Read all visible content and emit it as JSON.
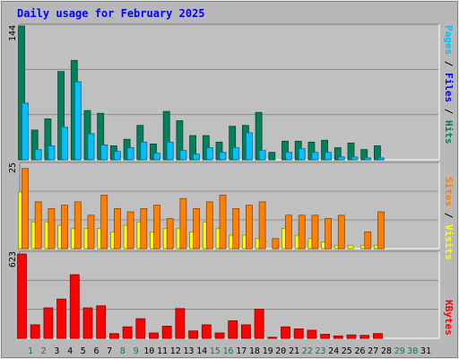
{
  "chart_data": [
    {
      "panel": "hits-files-pages",
      "type": "bar",
      "title": "Daily usage for February 2025",
      "categories": [
        "1",
        "2",
        "3",
        "4",
        "5",
        "6",
        "7",
        "8",
        "9",
        "10",
        "11",
        "12",
        "13",
        "14",
        "15",
        "16",
        "17",
        "18",
        "19",
        "20",
        "21",
        "22",
        "23",
        "24",
        "25",
        "26",
        "27",
        "28",
        "29",
        "30",
        "31"
      ],
      "ymax_label": "144",
      "ylim": [
        0,
        144
      ],
      "right_label": {
        "pages": "Pages",
        "files": "Files",
        "hits": "Hits",
        "sep": " / "
      },
      "series": [
        {
          "name": "Hits",
          "values": [
            144,
            32,
            44,
            95,
            107,
            53,
            50,
            15,
            22,
            37,
            17,
            52,
            42,
            26,
            26,
            19,
            36,
            37,
            51,
            8,
            20,
            20,
            19,
            21,
            13,
            18,
            11,
            15,
            0,
            0,
            0
          ]
        },
        {
          "name": "Files",
          "values": [
            61,
            11,
            15,
            35,
            84,
            28,
            16,
            9,
            13,
            19,
            7,
            19,
            10,
            6,
            13,
            8,
            13,
            29,
            10,
            0,
            8,
            12,
            8,
            8,
            3,
            3,
            2,
            2,
            0,
            0,
            0
          ]
        },
        {
          "name": "Pages",
          "values": [
            0,
            0,
            0,
            0,
            0,
            0,
            0,
            0,
            0,
            0,
            0,
            0,
            0,
            0,
            0,
            0,
            0,
            0,
            0,
            0,
            0,
            0,
            0,
            0,
            0,
            0,
            0,
            0,
            0,
            0,
            0
          ]
        }
      ]
    },
    {
      "panel": "visits-sites",
      "type": "bar",
      "categories": [
        "1",
        "2",
        "3",
        "4",
        "5",
        "6",
        "7",
        "8",
        "9",
        "10",
        "11",
        "12",
        "13",
        "14",
        "15",
        "16",
        "17",
        "18",
        "19",
        "20",
        "21",
        "22",
        "23",
        "24",
        "25",
        "26",
        "27",
        "28",
        "29",
        "30",
        "31"
      ],
      "ymax_label": "25",
      "ylim": [
        0,
        25
      ],
      "right_label": {
        "sites": "Sites",
        "visits": "Visits",
        "sep": " / "
      },
      "series": [
        {
          "name": "Visits",
          "values": [
            17,
            8,
            8,
            7,
            6,
            6,
            6,
            5,
            7,
            8,
            5,
            6,
            6,
            5,
            8,
            6,
            4,
            4,
            3,
            0,
            6,
            4,
            3,
            2,
            1,
            1,
            1,
            1,
            0,
            0,
            0
          ]
        },
        {
          "name": "Sites",
          "values": [
            24,
            14,
            12,
            13,
            14,
            10,
            16,
            12,
            11,
            12,
            13,
            9,
            15,
            12,
            14,
            16,
            12,
            13,
            14,
            3,
            10,
            10,
            10,
            9,
            10,
            0,
            5,
            11,
            0,
            0,
            0
          ]
        }
      ]
    },
    {
      "panel": "kbytes",
      "type": "bar",
      "categories": [
        "1",
        "2",
        "3",
        "4",
        "5",
        "6",
        "7",
        "8",
        "9",
        "10",
        "11",
        "12",
        "13",
        "14",
        "15",
        "16",
        "17",
        "18",
        "19",
        "20",
        "21",
        "22",
        "23",
        "24",
        "25",
        "26",
        "27",
        "28",
        "29",
        "30",
        "31"
      ],
      "ymax_label": "623",
      "ylim": [
        0,
        623
      ],
      "right_label": {
        "kbytes": "KBytes"
      },
      "series": [
        {
          "name": "KBytes",
          "values": [
            623,
            100,
            225,
            290,
            470,
            225,
            240,
            35,
            85,
            145,
            40,
            90,
            220,
            55,
            100,
            40,
            130,
            100,
            215,
            8,
            85,
            70,
            60,
            30,
            18,
            25,
            22,
            35,
            0,
            0,
            0
          ]
        }
      ]
    }
  ],
  "colors": {
    "hits": "#00805c",
    "files": "#00c0ff",
    "pages": "#00c0ff",
    "visits": "#ffff00",
    "sites": "#ff8000",
    "kbytes": "#ff0000",
    "weekend_label": "#00805c",
    "weekday_label": "#000000",
    "title": "#0000ff",
    "panel_bg": "#c0c0c0",
    "grid": "#808080"
  },
  "weekend_days": [
    "1",
    "2",
    "8",
    "9",
    "15",
    "16",
    "22",
    "23",
    "29",
    "30"
  ]
}
